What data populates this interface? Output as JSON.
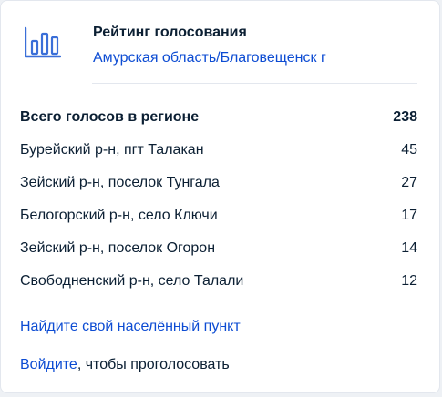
{
  "header": {
    "icon": "bar-chart-icon",
    "title": "Рейтинг голосования",
    "region_link": "Амурская область/Благовещенск г"
  },
  "total": {
    "label": "Всего голосов в регионе",
    "count": "238"
  },
  "rows": [
    {
      "name": "Бурейский р-н, пгт Талакан",
      "count": "45"
    },
    {
      "name": "Зейский р-н, поселок Тунгала",
      "count": "27"
    },
    {
      "name": "Белогорский р-н, село Ключи",
      "count": "17"
    },
    {
      "name": "Зейский р-н, поселок Огорон",
      "count": "14"
    },
    {
      "name": "Свободненский р-н, село Талали",
      "count": "12"
    }
  ],
  "links": {
    "find_place": "Найдите свой населённый пункт",
    "login": "Войдите",
    "login_suffix": ", чтобы проголосовать"
  },
  "colors": {
    "accent": "#0d4cd3",
    "icon": "#3b6fd8",
    "text": "#0b1f33"
  }
}
